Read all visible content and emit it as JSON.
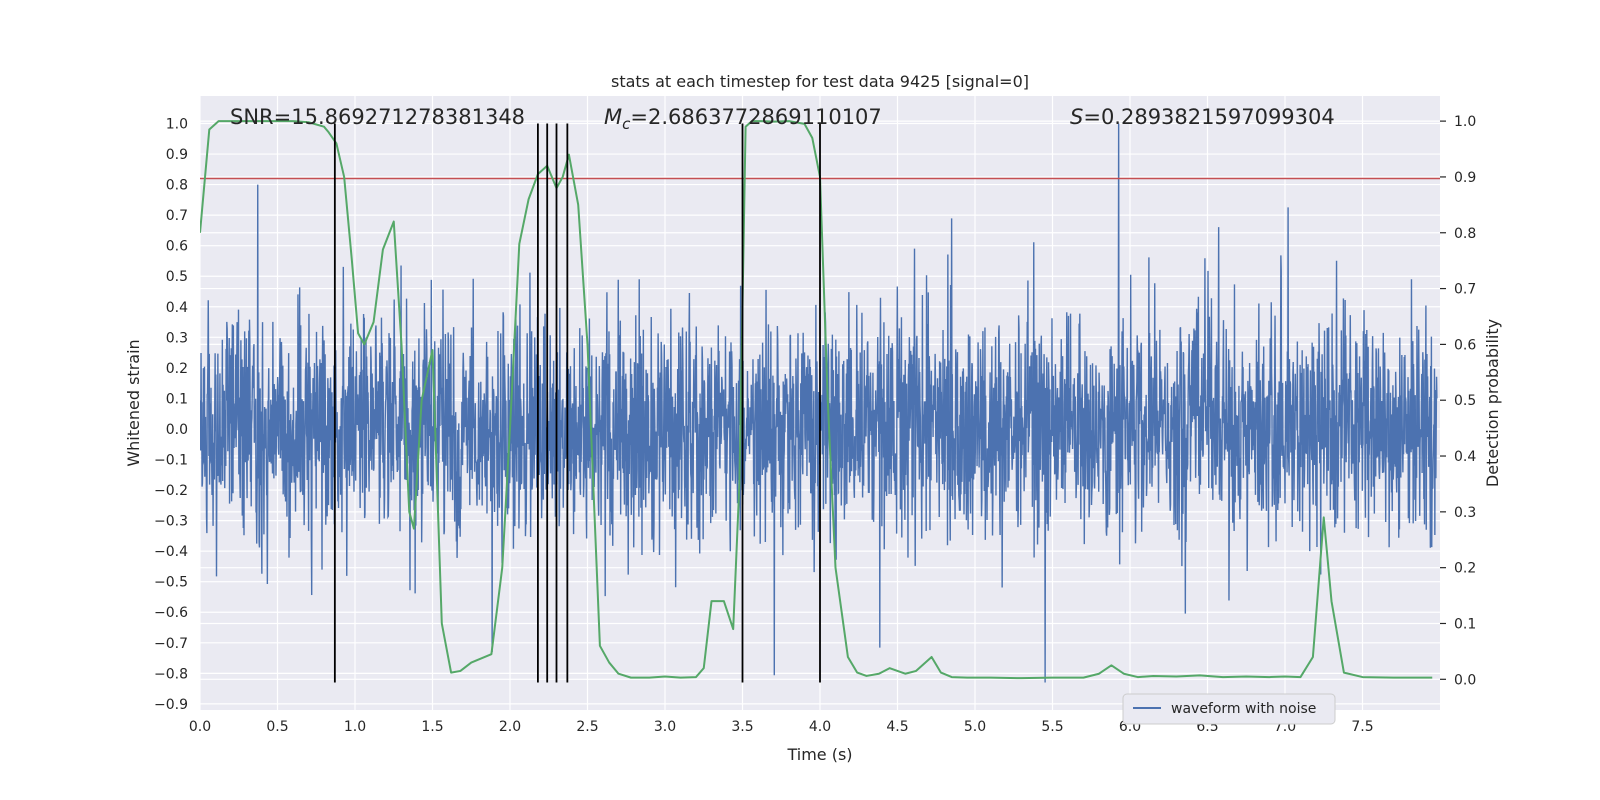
{
  "chart_data": {
    "type": "line",
    "title": "stats at each timestep for test data 9425 [signal=0]",
    "xlabel": "Time (s)",
    "ylabel": "Whitened strain",
    "y2label": "Detection probability",
    "xlim": [
      0.0,
      8.0
    ],
    "ylim": [
      -0.92,
      1.09
    ],
    "y2lim": [
      -0.055,
      1.045
    ],
    "xticks": [
      "0.0",
      "0.5",
      "1.0",
      "1.5",
      "2.0",
      "2.5",
      "3.0",
      "3.5",
      "4.0",
      "4.5",
      "5.0",
      "5.5",
      "6.0",
      "6.5",
      "7.0",
      "7.5"
    ],
    "yticks": [
      "1.0",
      "0.9",
      "0.8",
      "0.7",
      "0.6",
      "0.5",
      "0.4",
      "0.3",
      "0.2",
      "0.1",
      "0.0",
      "−0.1",
      "−0.2",
      "−0.3",
      "−0.4",
      "−0.5",
      "−0.6",
      "−0.7",
      "−0.8",
      "−0.9"
    ],
    "y2ticks": [
      "1.0",
      "0.9",
      "0.8",
      "0.7",
      "0.6",
      "0.5",
      "0.4",
      "0.3",
      "0.2",
      "0.1",
      "0.0"
    ],
    "grid": true,
    "legend_position": "lower-right",
    "annotations": {
      "snr": "SNR=15.869271278381348",
      "mc_symbol": "M",
      "mc_sub": "c",
      "mc_value": "=2.6863772869110107",
      "s_symbol": "S",
      "s_value": "=0.2893821597099304"
    },
    "series": [
      {
        "name": "waveform with noise",
        "color": "#4c72b0",
        "axis": "left",
        "description_range": [
          -0.83,
          1.0
        ]
      },
      {
        "color": "#55a868",
        "axis": "right",
        "x": [
          0.0,
          0.06,
          0.12,
          0.2,
          0.3,
          0.4,
          0.5,
          0.6,
          0.7,
          0.8,
          0.83,
          0.88,
          0.93,
          0.98,
          1.02,
          1.06,
          1.12,
          1.18,
          1.25,
          1.3,
          1.35,
          1.38,
          1.43,
          1.5,
          1.56,
          1.62,
          1.68,
          1.75,
          1.88,
          1.95,
          2.0,
          2.06,
          2.12,
          2.18,
          2.24,
          2.3,
          2.34,
          2.38,
          2.44,
          2.5,
          2.58,
          2.64,
          2.7,
          2.78,
          2.9,
          3.0,
          3.1,
          3.2,
          3.25,
          3.3,
          3.38,
          3.44,
          3.48,
          3.52,
          3.56,
          3.62,
          3.7,
          3.8,
          3.9,
          3.95,
          4.0,
          4.05,
          4.1,
          4.18,
          4.24,
          4.3,
          4.38,
          4.45,
          4.55,
          4.62,
          4.72,
          4.78,
          4.85,
          4.95,
          5.1,
          5.3,
          5.5,
          5.7,
          5.8,
          5.88,
          5.96,
          6.05,
          6.15,
          6.3,
          6.45,
          6.6,
          6.75,
          6.9,
          7.0,
          7.1,
          7.18,
          7.25,
          7.3,
          7.38,
          7.5,
          7.7,
          7.85,
          7.95
        ],
        "values": [
          0.8,
          0.985,
          1.0,
          1.0,
          1.0,
          1.0,
          1.0,
          1.0,
          0.998,
          0.99,
          0.98,
          0.96,
          0.9,
          0.75,
          0.62,
          0.6,
          0.64,
          0.77,
          0.82,
          0.6,
          0.3,
          0.27,
          0.5,
          0.59,
          0.1,
          0.012,
          0.015,
          0.03,
          0.045,
          0.2,
          0.45,
          0.78,
          0.86,
          0.905,
          0.92,
          0.88,
          0.9,
          0.94,
          0.85,
          0.6,
          0.06,
          0.03,
          0.01,
          0.003,
          0.003,
          0.005,
          0.003,
          0.004,
          0.02,
          0.14,
          0.14,
          0.09,
          0.35,
          0.99,
          1.0,
          1.0,
          0.999,
          1.0,
          0.995,
          0.97,
          0.9,
          0.5,
          0.2,
          0.04,
          0.012,
          0.006,
          0.01,
          0.02,
          0.01,
          0.015,
          0.04,
          0.012,
          0.004,
          0.003,
          0.003,
          0.002,
          0.003,
          0.003,
          0.01,
          0.025,
          0.01,
          0.004,
          0.006,
          0.005,
          0.007,
          0.004,
          0.005,
          0.004,
          0.005,
          0.004,
          0.04,
          0.29,
          0.14,
          0.012,
          0.004,
          0.003,
          0.003,
          0.003
        ]
      }
    ],
    "threshold_line": {
      "color": "#c44e52",
      "axis": "left",
      "value": 0.82
    },
    "vertical_lines": {
      "color": "#000000",
      "x": [
        0.87,
        2.18,
        2.24,
        2.3,
        2.37,
        3.5,
        4.0
      ],
      "y_top": 1.0,
      "y_bottom": -0.83
    }
  }
}
